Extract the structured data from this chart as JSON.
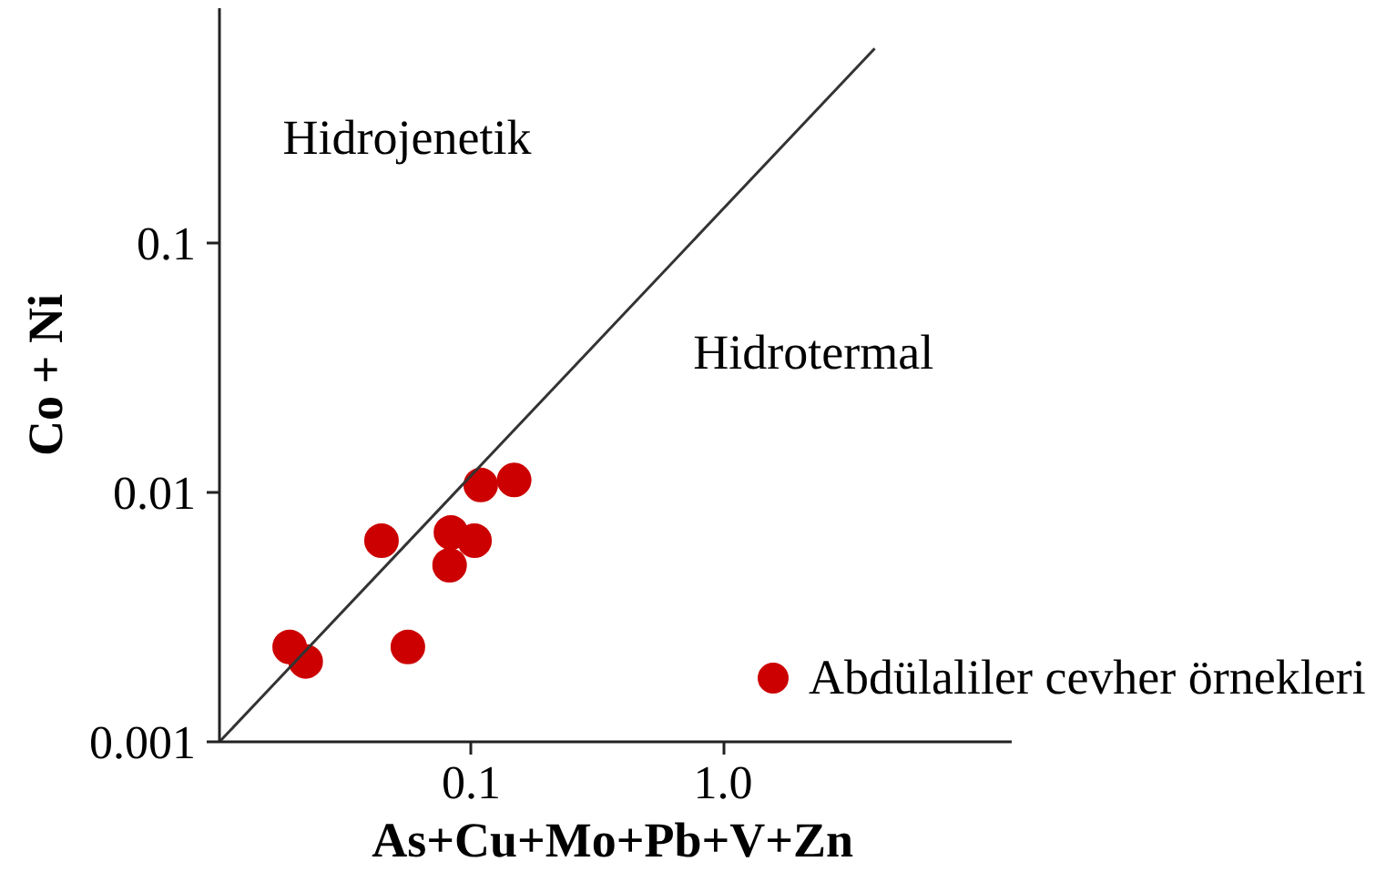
{
  "chart_data": {
    "type": "scatter",
    "xlabel": "As+Cu+Mo+Pb+V+Zn",
    "ylabel": "Co + Ni",
    "log": "xy",
    "xlim": [
      0.01,
      14
    ],
    "ylim": [
      0.001,
      0.87
    ],
    "xticks": [
      0.1,
      {
        "value": 1,
        "label": "1.0"
      }
    ],
    "yticks": [
      0.001,
      0.01,
      0.1
    ],
    "grid": false,
    "legend": "bottom right",
    "series": [
      {
        "name": "Abdülaliler cevher örnekleri",
        "marker": "circle",
        "color": "#cc0000",
        "x": [
          0.019,
          0.022,
          0.044,
          0.056,
          0.083,
          0.082,
          0.103,
          0.109,
          0.148
        ],
        "values": [
          0.0024,
          0.0021,
          0.0064,
          0.0024,
          0.0069,
          0.0051,
          0.0064,
          0.0107,
          0.0112
        ]
      },
      {
        "type": "line",
        "color": "#333333",
        "x": [
          0.01,
          4
        ],
        "values": [
          0.001,
          0.6
        ]
      }
    ],
    "annotations": [
      "Hidrojenetik",
      "Hidrotermal"
    ]
  }
}
